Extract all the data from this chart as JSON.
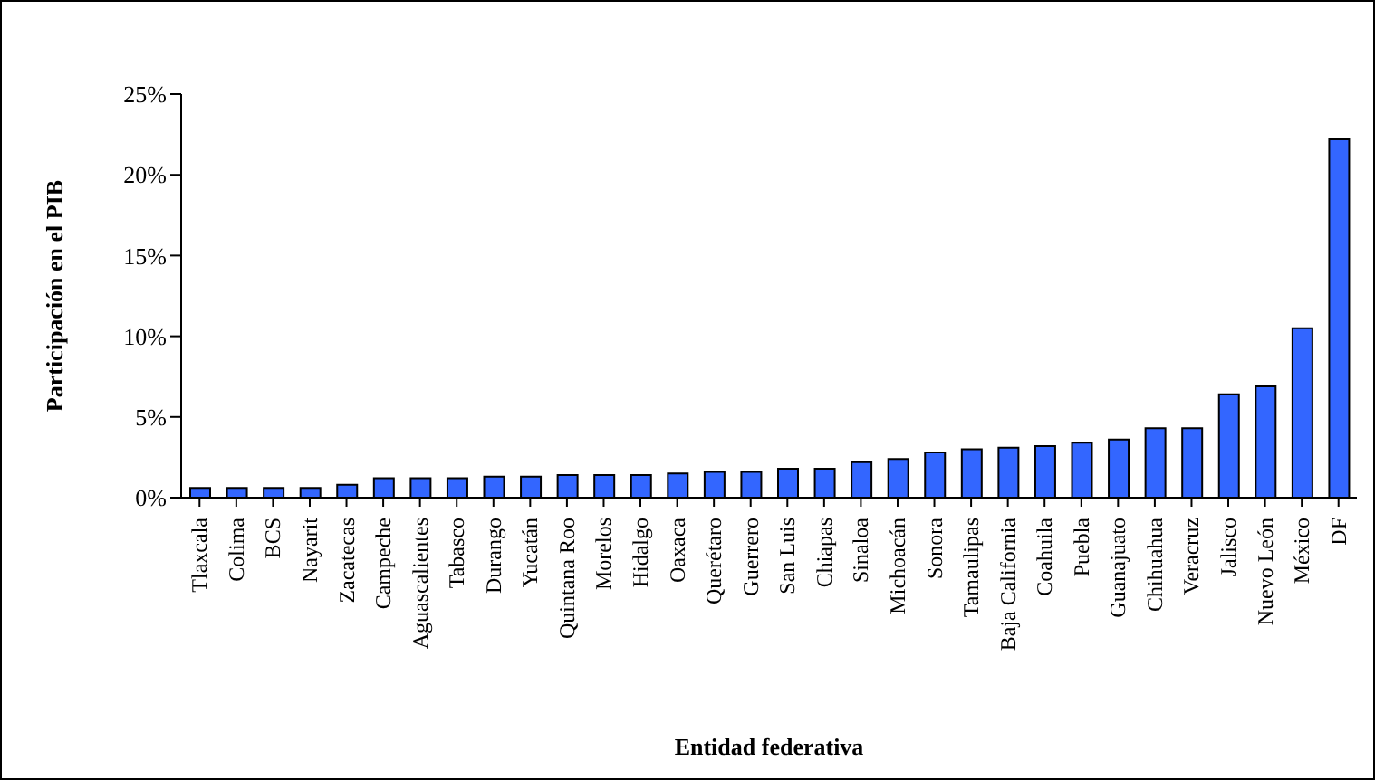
{
  "chart_data": {
    "type": "bar",
    "xlabel": "Entidad federativa",
    "ylabel": "Participación en el PIB",
    "categories": [
      "Tlaxcala",
      "Colima",
      "BCS",
      "Nayarit",
      "Zacatecas",
      "Campeche",
      "Aguascalientes",
      "Tabasco",
      "Durango",
      "Yucatán",
      "Quintana Roo",
      "Morelos",
      "Hidalgo",
      "Oaxaca",
      "Querétaro",
      "Guerrero",
      "San Luis",
      "Chiapas",
      "Sinaloa",
      "Michoacán",
      "Sonora",
      "Tamaulipas",
      "Baja California",
      "Coahuila",
      "Puebla",
      "Guanajuato",
      "Chihuahua",
      "Veracruz",
      "Jalisco",
      "Nuevo León",
      "México",
      "DF"
    ],
    "values": [
      0.6,
      0.6,
      0.6,
      0.6,
      0.8,
      1.2,
      1.2,
      1.2,
      1.3,
      1.3,
      1.4,
      1.4,
      1.4,
      1.5,
      1.6,
      1.6,
      1.8,
      1.8,
      2.2,
      2.4,
      2.8,
      3.0,
      3.1,
      3.2,
      3.4,
      3.6,
      4.3,
      4.3,
      6.4,
      6.9,
      10.5,
      22.2
    ],
    "color": "#3366ff",
    "ylim": [
      0,
      25
    ],
    "yticks": [
      {
        "value": 0,
        "label": "0%"
      },
      {
        "value": 5,
        "label": "5%"
      },
      {
        "value": 10,
        "label": "10%"
      },
      {
        "value": 15,
        "label": "15%"
      },
      {
        "value": 20,
        "label": "20%"
      },
      {
        "value": 25,
        "label": "25%"
      }
    ],
    "grid": false,
    "legend": false
  }
}
